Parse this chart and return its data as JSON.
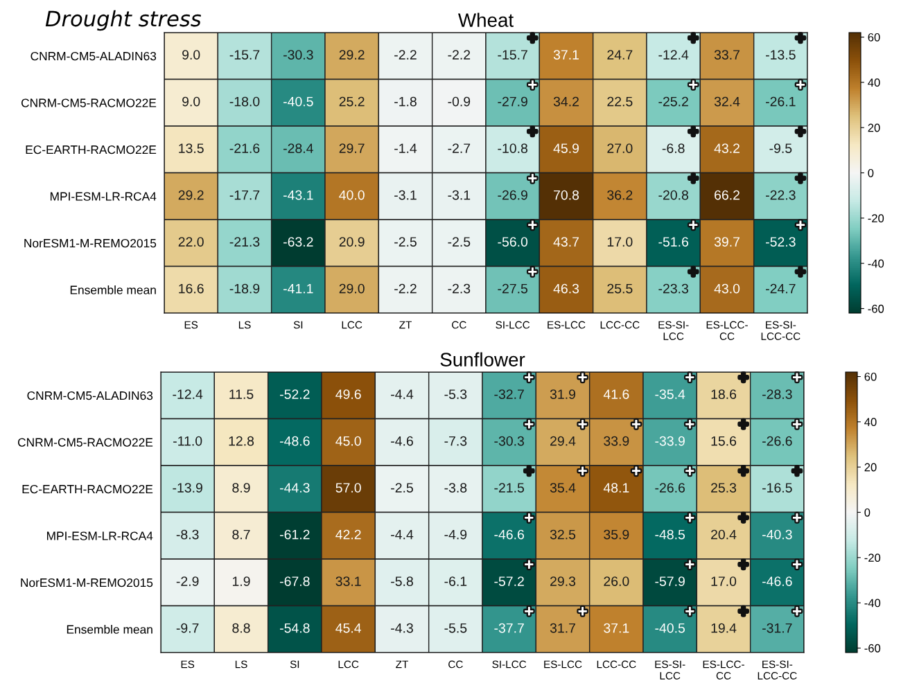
{
  "chart_data": [
    {
      "type": "heatmap",
      "title": "Wheat",
      "categories": [
        "ES",
        "LS",
        "SI",
        "LCC",
        "ZT",
        "CC",
        "SI-LCC",
        "ES-LCC",
        "LCC-CC",
        "ES-SI-\nLCC",
        "ES-LCC-\nCC",
        "ES-SI-\nLCC-CC"
      ],
      "y_categories": [
        "CNRM-CM5-ALADIN63",
        "CNRM-CM5-RACMO22E",
        "EC-EARTH-RACMO22E",
        "MPI-ESM-LR-RCA4",
        "NorESM1-M-REMO2015",
        "Ensemble mean"
      ],
      "cells": [
        [
          9.0,
          -15.7,
          -30.3,
          29.2,
          -2.2,
          -2.2,
          -15.7,
          37.1,
          24.7,
          -12.4,
          33.7,
          -13.5
        ],
        [
          9.0,
          -18.0,
          -40.5,
          25.2,
          -1.8,
          -0.9,
          -27.9,
          34.2,
          22.5,
          -25.2,
          32.4,
          -26.1
        ],
        [
          13.5,
          -21.6,
          -28.4,
          29.7,
          -1.4,
          -2.7,
          -10.8,
          45.9,
          27.0,
          -6.8,
          43.2,
          -9.5
        ],
        [
          29.2,
          -17.7,
          -43.1,
          40.0,
          -3.1,
          -3.1,
          -26.9,
          70.8,
          36.2,
          -20.8,
          66.2,
          -22.3
        ],
        [
          22.0,
          -21.3,
          -63.2,
          20.9,
          -2.5,
          -2.5,
          -56.0,
          43.7,
          17.0,
          -51.6,
          39.7,
          -52.3
        ],
        [
          16.6,
          -18.9,
          -41.1,
          29.0,
          -2.2,
          -2.3,
          -27.5,
          46.3,
          25.5,
          -23.3,
          43.0,
          -24.7
        ]
      ],
      "cell_labels": [
        [
          "9.0",
          "-15.7",
          "-30.3",
          "29.2",
          "-2.2",
          "-2.2",
          "-15.7 +",
          "37.1",
          "24.7",
          "-12.4 +",
          "33.7",
          "-13.5 +"
        ],
        [
          "9.0",
          "-18.0",
          "-40.5",
          "25.2",
          "-1.8",
          "-0.9",
          "-27.9 +",
          "34.2",
          "22.5",
          "-25.2 +",
          "32.4",
          "-26.1 +"
        ],
        [
          "13.5",
          "-21.6",
          "-28.4",
          "29.7",
          "-1.4",
          "-2.7",
          "-10.8 +",
          "45.9",
          "27.0",
          "-6.8 +",
          "43.2",
          "-9.5 +"
        ],
        [
          "29.2",
          "-17.7",
          "-43.1",
          "40.0",
          "-3.1",
          "-3.1",
          "-26.9 +",
          "70.8",
          "36.2",
          "-20.8 +",
          "66.2",
          "-22.3 +"
        ],
        [
          "22.0",
          "-21.3",
          "-63.2",
          "20.9",
          "-2.5",
          "-2.5",
          "-56.0 +",
          "43.7",
          "17.0",
          "-51.6 +",
          "39.7",
          "-52.3 +"
        ],
        [
          "16.6",
          "-18.9",
          "-41.1",
          "29.0",
          "-2.2",
          "-2.3",
          "-27.5 +",
          "46.3",
          "25.5",
          "-23.3 +",
          "43.0",
          "-24.7 +"
        ]
      ],
      "clim": [
        -62,
        62
      ],
      "cticks": [
        -60,
        -40,
        -20,
        0,
        20,
        40,
        60
      ],
      "annotations": [
        "Drought stress"
      ]
    },
    {
      "type": "heatmap",
      "title": "Sunflower",
      "categories": [
        "ES",
        "LS",
        "SI",
        "LCC",
        "ZT",
        "CC",
        "SI-LCC",
        "ES-LCC",
        "LCC-CC",
        "ES-SI-\nLCC",
        "ES-LCC-\nCC",
        "ES-SI-\nLCC-CC"
      ],
      "y_categories": [
        "CNRM-CM5-ALADIN63",
        "CNRM-CM5-RACMO22E",
        "EC-EARTH-RACMO22E",
        "MPI-ESM-LR-RCA4",
        "NorESM1-M-REMO2015",
        "Ensemble mean"
      ],
      "cells": [
        [
          -12.4,
          11.5,
          -52.2,
          49.6,
          -4.4,
          -5.3,
          -32.7,
          31.9,
          41.6,
          -35.4,
          18.6,
          -28.3
        ],
        [
          -11.0,
          12.8,
          -48.6,
          45.0,
          -4.6,
          -7.3,
          -30.3,
          29.4,
          33.9,
          -33.9,
          15.6,
          -26.6
        ],
        [
          -13.9,
          8.9,
          -44.3,
          57.0,
          -2.5,
          -3.8,
          -21.5,
          35.4,
          48.1,
          -26.6,
          25.3,
          -16.5
        ],
        [
          -8.3,
          8.7,
          -61.2,
          42.2,
          -4.4,
          -4.9,
          -46.6,
          32.5,
          35.9,
          -48.5,
          20.4,
          -40.3
        ],
        [
          -2.9,
          1.9,
          -67.8,
          33.1,
          -5.8,
          -6.1,
          -57.2,
          29.3,
          26.0,
          -57.9,
          17.0,
          -46.6
        ],
        [
          -9.7,
          8.8,
          -54.8,
          45.4,
          -4.3,
          -5.5,
          -37.7,
          31.7,
          37.1,
          -40.5,
          19.4,
          -31.7
        ]
      ],
      "cell_labels": [
        [
          "-12.4",
          "11.5",
          "-52.2",
          "49.6",
          "-4.4",
          "-5.3",
          "-32.7 +",
          "31.9 +",
          "41.6",
          "-35.4 +",
          "18.6 +",
          "-28.3 +"
        ],
        [
          "-11.0",
          "12.8",
          "-48.6",
          "45.0",
          "-4.6",
          "-7.3",
          "-30.3 +",
          "29.4 +",
          "33.9 +",
          "-33.9 +",
          "15.6 +",
          "-26.6 +"
        ],
        [
          "-13.9",
          "8.9",
          "-44.3",
          "57.0",
          "-2.5",
          "-3.8",
          "-21.5 +",
          "35.4 +",
          "48.1 +",
          "-26.6 +",
          "25.3 +",
          "-16.5 +"
        ],
        [
          "-8.3",
          "8.7",
          "-61.2",
          "42.2",
          "-4.4",
          "-4.9",
          "-46.6 +",
          "32.5",
          "35.9",
          "-48.5 +",
          "20.4 +",
          "-40.3 +"
        ],
        [
          "-2.9",
          "1.9",
          "-67.8",
          "33.1",
          "-5.8",
          "-6.1",
          "-57.2 +",
          "29.3",
          "26.0",
          "-57.9 +",
          "17.0 +",
          "-46.6 +"
        ],
        [
          "-9.7",
          "8.8",
          "-54.8",
          "45.4",
          "-4.3",
          "-5.5",
          "-37.7 +",
          "31.7 +",
          "37.1",
          "-40.5 +",
          "19.4 +",
          "-31.7 +"
        ]
      ],
      "clim": [
        -62,
        62
      ],
      "cticks": [
        -60,
        -40,
        -20,
        0,
        20,
        40,
        60
      ]
    }
  ]
}
